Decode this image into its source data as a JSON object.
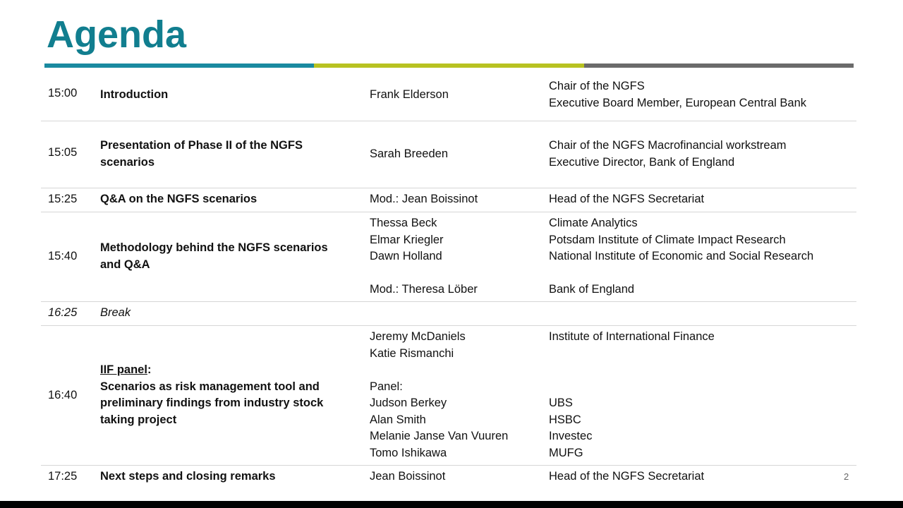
{
  "title": "Agenda",
  "colors": {
    "title": "#117e8f",
    "rule_teal": "#1a8aa0",
    "rule_lime": "#b8c221",
    "rule_gray": "#6b6b6b"
  },
  "rows": [
    {
      "time": "15:00",
      "topic": [
        "Introduction"
      ],
      "people": [
        "Frank Elderson"
      ],
      "orgs": [
        "Chair of the NGFS",
        "Executive Board Member, European Central Bank"
      ]
    },
    {
      "time": "15:05",
      "topic": [
        "Presentation of Phase II of the NGFS",
        "scenarios"
      ],
      "people": [
        "Sarah Breeden"
      ],
      "orgs": [
        "Chair of the NGFS Macrofinancial workstream",
        "Executive Director, Bank of England"
      ]
    },
    {
      "time": "15:25",
      "topic": [
        "Q&A on the NGFS scenarios"
      ],
      "people": [
        "Mod.: Jean Boissinot"
      ],
      "orgs": [
        "Head of the NGFS Secretariat"
      ]
    },
    {
      "time": "15:40",
      "topic": [
        "Methodology behind the NGFS scenarios",
        "and Q&A"
      ],
      "people": [
        "Thessa Beck",
        "Elmar Kriegler",
        "Dawn Holland",
        "",
        "Mod.: Theresa Löber"
      ],
      "orgs": [
        "Climate Analytics",
        "Potsdam Institute of Climate Impact Research",
        "National Institute of Economic and Social Research",
        "",
        "Bank of England"
      ]
    },
    {
      "time": "16:25",
      "topic": [
        "Break"
      ],
      "people": [],
      "orgs": []
    },
    {
      "time": "16:40",
      "topic_heading": "IIF panel",
      "topic_heading_suffix": ":",
      "topic": [
        "Scenarios as risk management tool and",
        "preliminary findings from industry stock",
        "taking project"
      ],
      "people": [
        "Jeremy McDaniels",
        "Katie Rismanchi",
        "",
        "Panel:",
        "Judson Berkey",
        "Alan Smith",
        "Melanie Janse Van Vuuren",
        "Tomo Ishikawa"
      ],
      "orgs": [
        "Institute of International Finance",
        "",
        "",
        "",
        "UBS",
        "HSBC",
        "Investec",
        "MUFG"
      ]
    },
    {
      "time": "17:25",
      "topic": [
        "Next steps and closing remarks"
      ],
      "people": [
        "Jean Boissinot"
      ],
      "orgs": [
        "Head of the NGFS Secretariat"
      ]
    }
  ],
  "page_number": "2"
}
